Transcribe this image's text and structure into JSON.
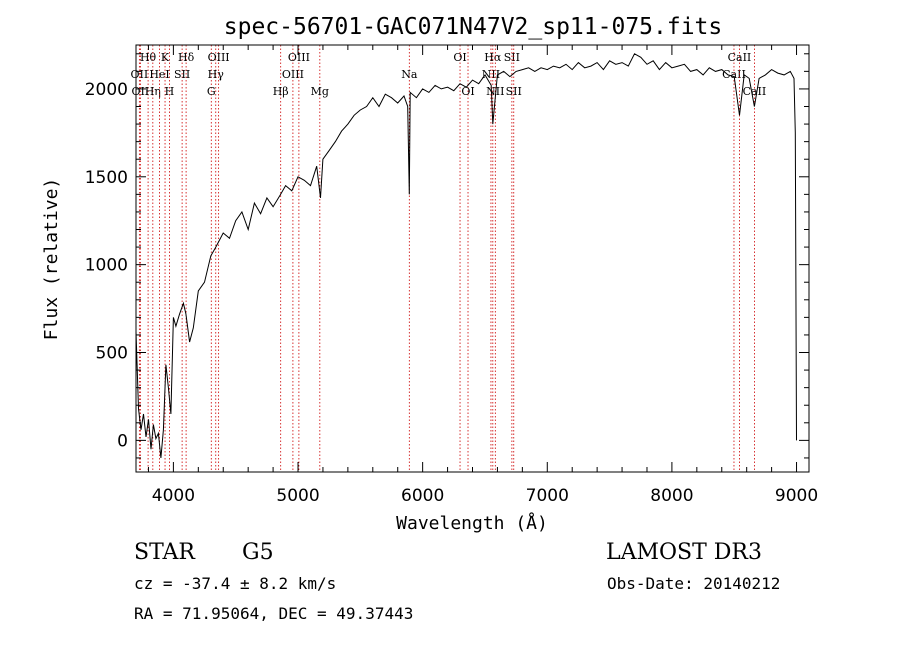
{
  "chart_data": {
    "type": "line",
    "title": "spec-56701-GAC071N47V2_sp11-075.fits",
    "xlabel": "Wavelength (Å)",
    "ylabel": "Flux (relative)",
    "xlim": [
      3700,
      9100
    ],
    "ylim": [
      -180,
      2250
    ],
    "xticks": [
      4000,
      5000,
      6000,
      7000,
      8000,
      9000
    ],
    "xtick_labels": [
      "4000",
      "5000",
      "6000",
      "7000",
      "8000",
      "9000"
    ],
    "yticks": [
      0,
      500,
      1000,
      1500,
      2000
    ],
    "ytick_labels": [
      "0",
      "500",
      "1000",
      "1500",
      "2000"
    ],
    "grid": false,
    "series": [
      {
        "name": "flux",
        "x": [
          3700,
          3720,
          3740,
          3760,
          3780,
          3800,
          3820,
          3840,
          3860,
          3880,
          3900,
          3920,
          3940,
          3960,
          3980,
          4000,
          4020,
          4050,
          4080,
          4100,
          4130,
          4160,
          4200,
          4250,
          4300,
          4340,
          4400,
          4450,
          4500,
          4550,
          4600,
          4650,
          4700,
          4750,
          4800,
          4860,
          4900,
          4950,
          5000,
          5050,
          5100,
          5150,
          5180,
          5200,
          5250,
          5300,
          5350,
          5400,
          5450,
          5500,
          5550,
          5600,
          5650,
          5700,
          5750,
          5800,
          5850,
          5880,
          5893,
          5900,
          5950,
          6000,
          6050,
          6100,
          6150,
          6200,
          6250,
          6300,
          6350,
          6400,
          6450,
          6500,
          6550,
          6563,
          6600,
          6650,
          6700,
          6750,
          6800,
          6850,
          6900,
          6950,
          7000,
          7050,
          7100,
          7150,
          7200,
          7250,
          7300,
          7350,
          7400,
          7450,
          7500,
          7550,
          7600,
          7650,
          7700,
          7750,
          7800,
          7850,
          7900,
          7950,
          8000,
          8050,
          8100,
          8150,
          8200,
          8250,
          8300,
          8350,
          8400,
          8450,
          8500,
          8542,
          8580,
          8620,
          8662,
          8700,
          8750,
          8800,
          8850,
          8900,
          8950,
          8980,
          8990,
          9000
        ],
        "y": [
          620,
          180,
          60,
          150,
          20,
          120,
          -50,
          90,
          10,
          40,
          -100,
          60,
          430,
          300,
          150,
          700,
          650,
          720,
          780,
          720,
          560,
          640,
          850,
          900,
          1050,
          1100,
          1180,
          1150,
          1250,
          1300,
          1200,
          1350,
          1290,
          1380,
          1330,
          1400,
          1450,
          1420,
          1500,
          1480,
          1450,
          1560,
          1380,
          1600,
          1650,
          1700,
          1760,
          1800,
          1850,
          1880,
          1900,
          1950,
          1900,
          1970,
          1950,
          1920,
          1960,
          1900,
          1400,
          1980,
          1950,
          2000,
          1980,
          2020,
          2000,
          2010,
          1990,
          2030,
          2010,
          2050,
          2030,
          2080,
          2020,
          1800,
          2080,
          2100,
          2070,
          2100,
          2110,
          2120,
          2100,
          2120,
          2110,
          2130,
          2120,
          2140,
          2110,
          2150,
          2120,
          2130,
          2150,
          2110,
          2160,
          2140,
          2150,
          2130,
          2200,
          2180,
          2140,
          2160,
          2110,
          2150,
          2120,
          2130,
          2140,
          2100,
          2110,
          2080,
          2120,
          2100,
          2110,
          2080,
          2070,
          1850,
          2080,
          2060,
          1900,
          2060,
          2080,
          2110,
          2090,
          2080,
          2100,
          2060,
          1750,
          0
        ]
      }
    ],
    "line_markers": [
      {
        "x": 3727,
        "label": "OII",
        "row": 2
      },
      {
        "x": 3735,
        "label": "OII",
        "row": 3
      },
      {
        "x": 3797,
        "label": "Hθ",
        "row": 1
      },
      {
        "x": 3835,
        "label": "Hη",
        "row": 3
      },
      {
        "x": 3889,
        "label": "HeI",
        "row": 2
      },
      {
        "x": 3933,
        "label": "K",
        "row": 1
      },
      {
        "x": 3968,
        "label": "H",
        "row": 3
      },
      {
        "x": 4070,
        "label": "SII",
        "row": 2
      },
      {
        "x": 4102,
        "label": "Hδ",
        "row": 1
      },
      {
        "x": 4304,
        "label": "G",
        "row": 3
      },
      {
        "x": 4340,
        "label": "Hγ",
        "row": 2
      },
      {
        "x": 4363,
        "label": "OIII",
        "row": 1
      },
      {
        "x": 4861,
        "label": "Hβ",
        "row": 3
      },
      {
        "x": 4959,
        "label": "OIII",
        "row": 2
      },
      {
        "x": 5007,
        "label": "OIII",
        "row": 1
      },
      {
        "x": 5175,
        "label": "Mg",
        "row": 3
      },
      {
        "x": 5893,
        "label": "Na",
        "row": 2
      },
      {
        "x": 6300,
        "label": "OI",
        "row": 1
      },
      {
        "x": 6364,
        "label": "OI",
        "row": 3
      },
      {
        "x": 6548,
        "label": "NII",
        "row": 2
      },
      {
        "x": 6563,
        "label": "Hα",
        "row": 1
      },
      {
        "x": 6583,
        "label": "NII",
        "row": 3
      },
      {
        "x": 6716,
        "label": "SII",
        "row": 1
      },
      {
        "x": 6731,
        "label": "SII",
        "row": 3
      },
      {
        "x": 8498,
        "label": "CaII",
        "row": 2
      },
      {
        "x": 8542,
        "label": "CaII",
        "row": 1
      },
      {
        "x": 8662,
        "label": "CaII",
        "row": 3
      }
    ]
  },
  "info": {
    "object_class": "STAR",
    "subclass": "G5",
    "survey": "LAMOST DR3",
    "redshift": "cz = -37.4 ± 8.2 km/s",
    "obs_date": "Obs-Date: 20140212",
    "coords": "RA =  71.95064, DEC =  49.37443"
  },
  "colors": {
    "line": "#000000",
    "marker": "#cc0000",
    "axis": "#000000"
  }
}
